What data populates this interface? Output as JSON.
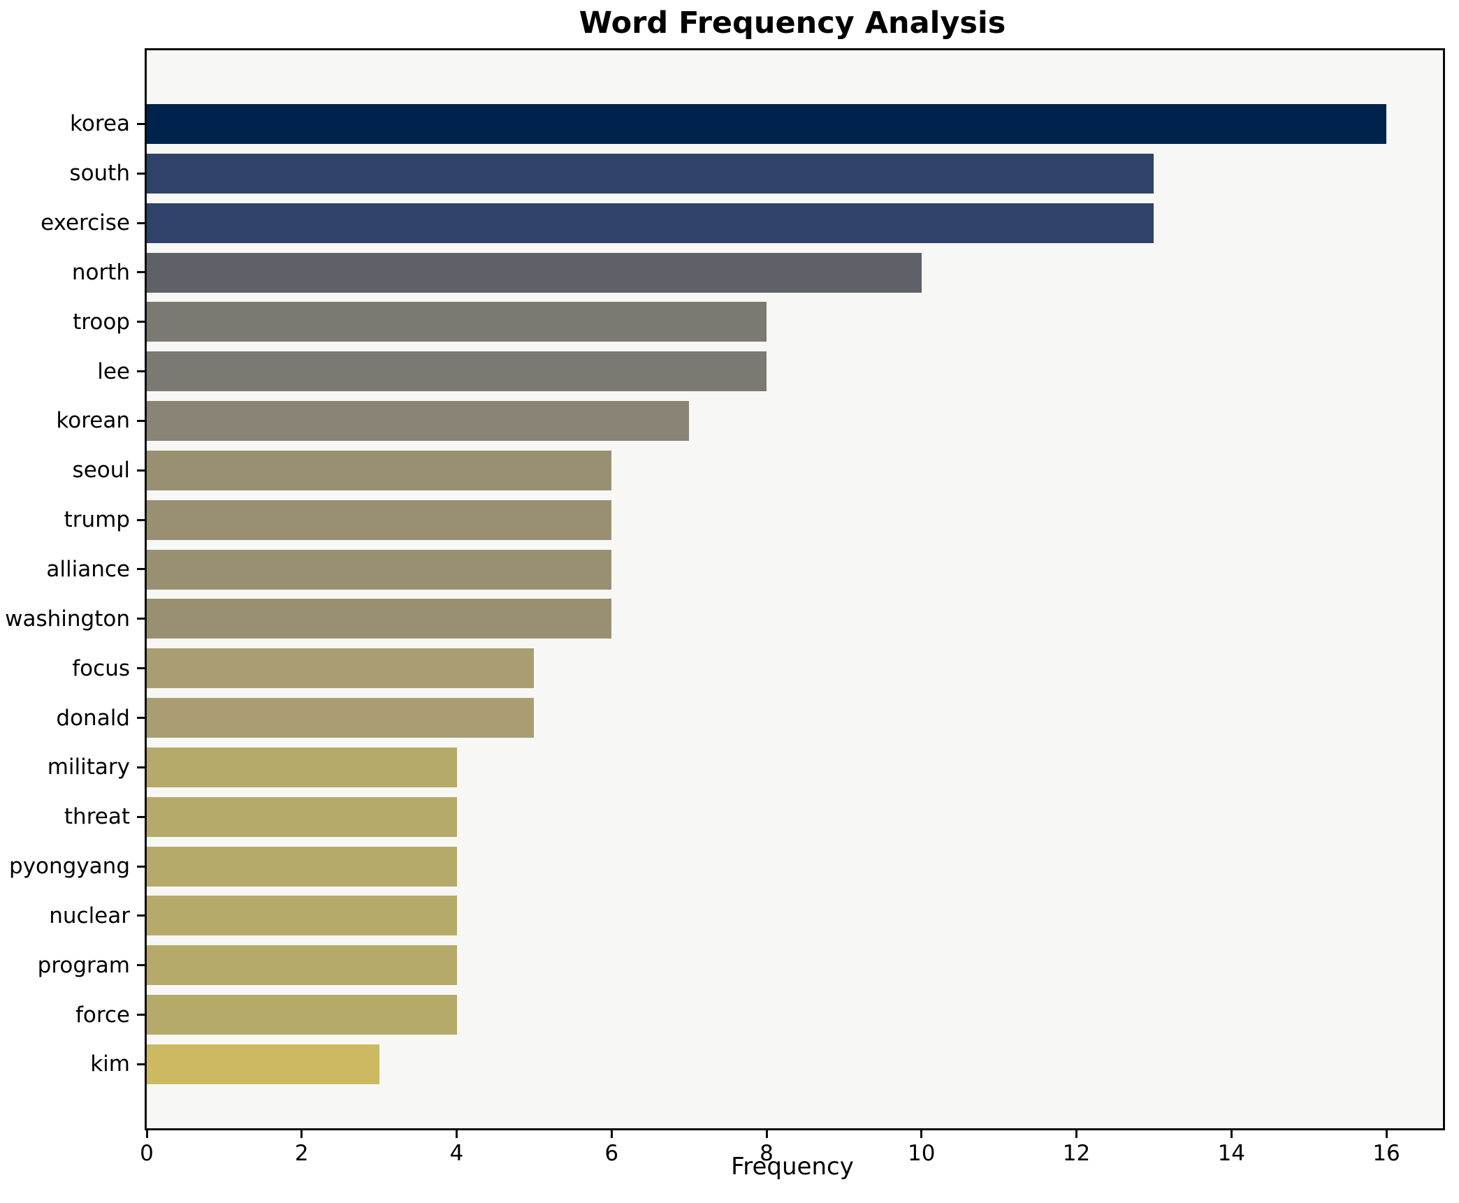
{
  "chart_data": {
    "type": "bar",
    "orientation": "horizontal",
    "title": "Word Frequency Analysis",
    "xlabel": "Frequency",
    "ylabel": "",
    "categories": [
      "korea",
      "south",
      "exercise",
      "north",
      "troop",
      "lee",
      "korean",
      "seoul",
      "trump",
      "alliance",
      "washington",
      "focus",
      "donald",
      "military",
      "threat",
      "pyongyang",
      "nuclear",
      "program",
      "force",
      "kim"
    ],
    "values": [
      16,
      13,
      13,
      10,
      8,
      8,
      7,
      6,
      6,
      6,
      6,
      5,
      5,
      4,
      4,
      4,
      4,
      4,
      4,
      3
    ],
    "bar_colors": [
      "#00234d",
      "#2f4269",
      "#2f4269",
      "#5e6168",
      "#7b7971",
      "#7b7971",
      "#8a8477",
      "#999072",
      "#999072",
      "#999072",
      "#999072",
      "#a89e71",
      "#a89e71",
      "#b6aa6a",
      "#b6aa6a",
      "#b6aa6a",
      "#b6aa6a",
      "#b6aa6a",
      "#b6aa6a",
      "#ccba62"
    ],
    "xlim": [
      0,
      16.73
    ],
    "x_ticks": [
      0,
      2,
      4,
      6,
      8,
      10,
      12,
      14,
      16
    ],
    "grid": false,
    "legend": null,
    "plot_bg": "#f7f7f5",
    "figure_bg": "#ffffff",
    "colormap_note": "cividis-style: darkest navy for highest frequency, gold for lowest"
  }
}
